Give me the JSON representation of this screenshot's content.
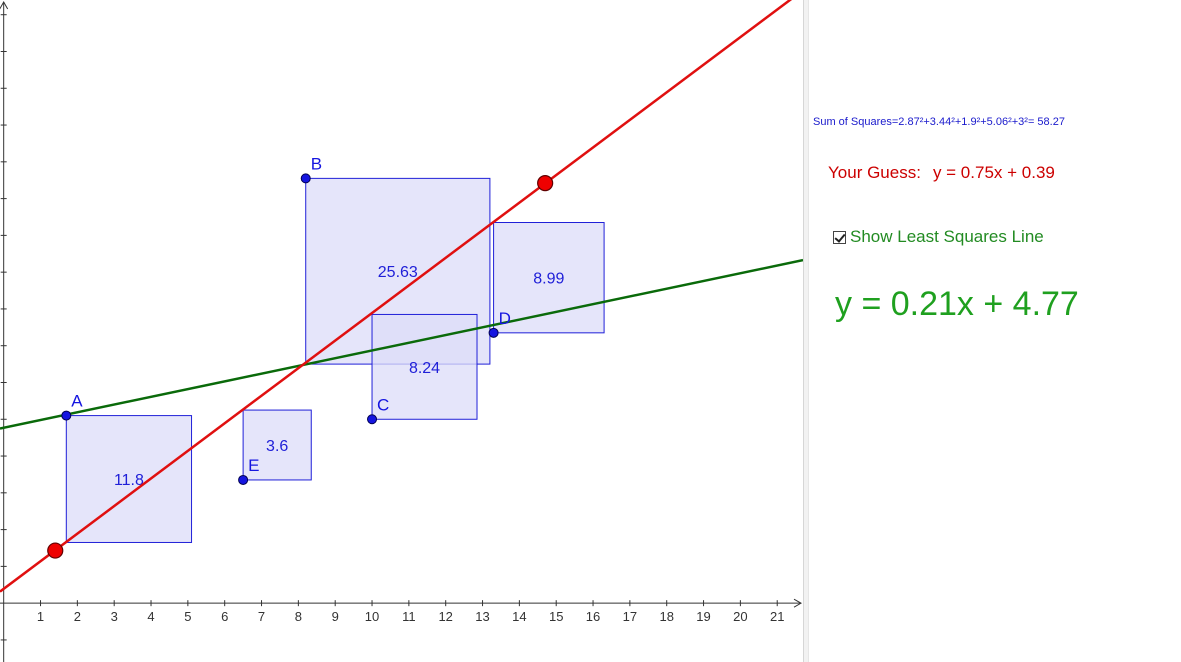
{
  "colors": {
    "guess_line": "#e01010",
    "least_squares_line": "#0a6a0a",
    "squares_fill": "#dcdcf8",
    "squares_stroke": "#2020d8",
    "point": "#1515e0",
    "handle": "#ee0000",
    "axis": "#333333"
  },
  "chart_data": {
    "type": "scatter",
    "xlim": [
      -0.1,
      21.7
    ],
    "ylim": [
      -1.6,
      16.4
    ],
    "x_ticks": [
      1,
      2,
      3,
      4,
      5,
      6,
      7,
      8,
      9,
      10,
      11,
      12,
      13,
      14,
      15,
      16,
      17,
      18,
      19,
      20,
      21
    ],
    "y_ticks": [
      -1,
      1,
      2,
      3,
      4,
      5,
      6,
      7,
      8,
      9,
      10,
      11,
      12,
      13,
      14,
      15,
      16
    ],
    "origin_label": "0",
    "points": [
      {
        "label": "A",
        "x": 1.7,
        "y": 5.1
      },
      {
        "label": "B",
        "x": 8.2,
        "y": 11.55
      },
      {
        "label": "C",
        "x": 10.0,
        "y": 5.0
      },
      {
        "label": "D",
        "x": 13.3,
        "y": 7.35
      },
      {
        "label": "E",
        "x": 6.5,
        "y": 3.35
      }
    ],
    "squares": [
      {
        "value_label": "11.8",
        "x0": 1.7,
        "y0": 1.65,
        "x1": 5.1,
        "y1": 5.1
      },
      {
        "value_label": "25.63",
        "x0": 8.2,
        "y0": 6.5,
        "x1": 13.2,
        "y1": 11.55
      },
      {
        "value_label": "8.24",
        "x0": 10.0,
        "y0": 5.0,
        "x1": 12.85,
        "y1": 7.85
      },
      {
        "value_label": "8.99",
        "x0": 13.3,
        "y0": 7.35,
        "x1": 16.3,
        "y1": 10.35
      },
      {
        "value_label": "3.6",
        "x0": 6.5,
        "y0": 3.35,
        "x1": 8.35,
        "y1": 5.25
      }
    ],
    "guess_line": {
      "slope": 0.75,
      "intercept": 0.39
    },
    "least_squares_line": {
      "slope": 0.21,
      "intercept": 4.77
    },
    "guess_handles": [
      {
        "x": 1.4,
        "y": 1.43
      },
      {
        "x": 14.7,
        "y": 11.42
      }
    ]
  },
  "panel": {
    "sum_of_squares": "Sum of Squares=2.87²+3.44²+1.9²+5.06²+3²= 58.27",
    "guess_label": "Your Guess:",
    "guess_equation": "y = 0.75x + 0.39",
    "show_least_squares_label": "Show Least Squares Line",
    "show_least_squares_checked": true,
    "least_squares_equation": "y = 0.21x + 4.77"
  }
}
